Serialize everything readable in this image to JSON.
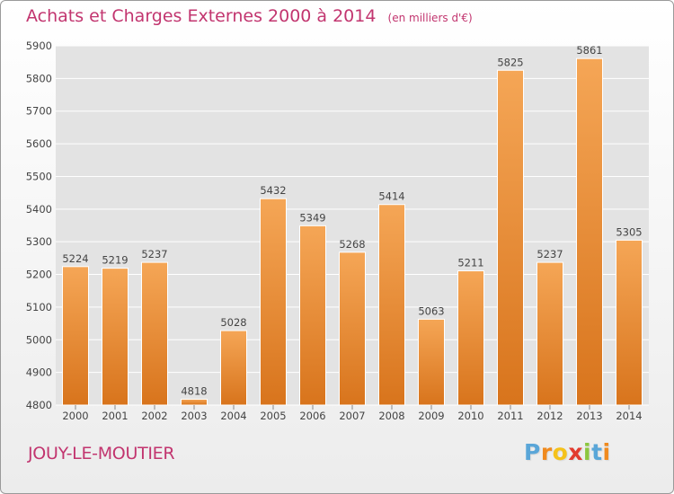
{
  "chart_data": {
    "type": "bar",
    "title": "Achats et Charges Externes 2000 à 2014",
    "subtitle": "(en milliers d'€)",
    "categories": [
      "2000",
      "2001",
      "2002",
      "2003",
      "2004",
      "2005",
      "2006",
      "2007",
      "2008",
      "2009",
      "2010",
      "2011",
      "2012",
      "2013",
      "2014"
    ],
    "values": [
      5224,
      5219,
      5237,
      4818,
      5028,
      5432,
      5349,
      5268,
      5414,
      5063,
      5211,
      5825,
      5237,
      5861,
      5305
    ],
    "ylim": [
      4800,
      5900
    ],
    "yticks": [
      4800,
      4900,
      5000,
      5100,
      5200,
      5300,
      5400,
      5500,
      5600,
      5700,
      5800,
      5900
    ],
    "xlabel": "",
    "ylabel": "",
    "grid": true,
    "data_labels": true,
    "colors": {
      "bar_top": "#f5a656",
      "bar_bottom": "#d8741c",
      "plot_bg": "#e3e3e3",
      "grid": "#ffffff",
      "title": "#c2356f"
    }
  },
  "footer": {
    "commune": "JOUY-LE-MOUTIER",
    "logo_letters": [
      {
        "char": "P",
        "color": "#5aa6d8"
      },
      {
        "char": "r",
        "color": "#f08a1e"
      },
      {
        "char": "o",
        "color": "#f5c21b"
      },
      {
        "char": "x",
        "color": "#e23b2f"
      },
      {
        "char": "i",
        "color": "#8cc63f"
      },
      {
        "char": "t",
        "color": "#5aa6d8"
      },
      {
        "char": "i",
        "color": "#f08a1e"
      }
    ]
  }
}
